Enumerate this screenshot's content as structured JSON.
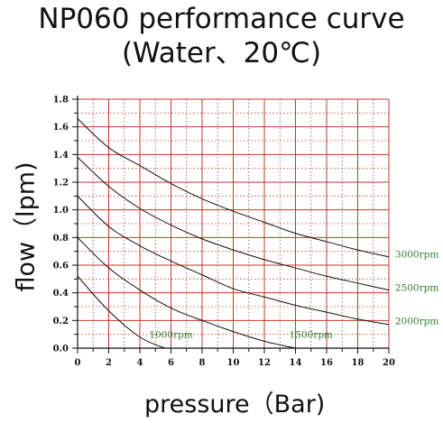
{
  "chart_data": {
    "type": "line",
    "title": "NP060 performance curve",
    "subtitle": "(Water、20℃)",
    "xlabel": "pressure（Bar)",
    "ylabel": "flow（lpm)",
    "xlim": [
      0,
      20
    ],
    "ylim": [
      0,
      1.8
    ],
    "xticks": [
      "0",
      "2",
      "4",
      "6",
      "8",
      "10",
      "12",
      "14",
      "16",
      "18",
      "20"
    ],
    "yticks": [
      "0.0",
      "0.2",
      "0.4",
      "0.6",
      "0.8",
      "1.0",
      "1.2",
      "1.4",
      "1.6",
      "1.8"
    ],
    "grid": true,
    "series": [
      {
        "name": "1000rpm",
        "x": [
          0,
          2,
          4,
          5.6
        ],
        "y": [
          0.52,
          0.27,
          0.08,
          0.0
        ],
        "label_pos": [
          4.6,
          0.1
        ]
      },
      {
        "name": "1500rpm",
        "x": [
          0,
          2,
          4,
          6,
          8,
          10,
          12,
          14
        ],
        "y": [
          0.8,
          0.58,
          0.42,
          0.29,
          0.2,
          0.12,
          0.05,
          0.0
        ],
        "label_pos": [
          13.6,
          0.1
        ]
      },
      {
        "name": "2000rpm",
        "x": [
          0,
          2,
          4,
          6,
          8,
          10,
          12,
          14,
          16,
          18,
          20
        ],
        "y": [
          1.1,
          0.88,
          0.74,
          0.63,
          0.53,
          0.43,
          0.37,
          0.31,
          0.26,
          0.21,
          0.17
        ],
        "label_pos": [
          20.4,
          0.2
        ]
      },
      {
        "name": "2500rpm",
        "x": [
          0,
          2,
          4,
          6,
          8,
          10,
          12,
          14,
          16,
          18,
          20
        ],
        "y": [
          1.38,
          1.17,
          1.01,
          0.89,
          0.79,
          0.71,
          0.64,
          0.58,
          0.52,
          0.47,
          0.42
        ],
        "label_pos": [
          20.4,
          0.44
        ]
      },
      {
        "name": "3000rpm",
        "x": [
          0,
          2,
          4,
          6,
          8,
          10,
          12,
          14,
          16,
          18,
          20
        ],
        "y": [
          1.66,
          1.45,
          1.32,
          1.19,
          1.08,
          0.99,
          0.91,
          0.83,
          0.77,
          0.71,
          0.66
        ],
        "label_pos": [
          20.4,
          0.68
        ]
      }
    ],
    "colors": {
      "grid_major": "#c0392b",
      "grid_minor": "#c0392b",
      "curve": "#111111",
      "axis": "#111111",
      "curve_label": "#2e7d32"
    }
  }
}
